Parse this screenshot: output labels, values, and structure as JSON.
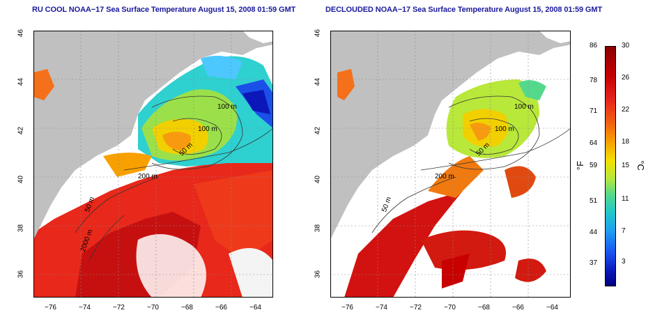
{
  "titles": {
    "left": "RU COOL NOAA−17 Sea Surface Temperature August 15, 2008 01:59 GMT",
    "right": "DECLOUDED NOAA−17 Sea Surface Temperature August 15, 2008 01:59 GMT"
  },
  "axes": {
    "x_ticks": [
      "−76",
      "−74",
      "−72",
      "−70",
      "−68",
      "−66",
      "−64"
    ],
    "y_ticks": [
      "46",
      "44",
      "42",
      "40",
      "38",
      "36"
    ]
  },
  "contours": {
    "left": [
      "100 m",
      "100 m",
      "50 m",
      "200 m",
      "50 m",
      "2000 m"
    ],
    "right": [
      "100 m",
      "100 m",
      "50 m",
      "200 m",
      "50 m"
    ]
  },
  "colorbar": {
    "fahrenheit_ticks": [
      "86",
      "78",
      "71",
      "64",
      "59",
      "51",
      "44",
      "37"
    ],
    "celsius_ticks": [
      "30",
      "26",
      "22",
      "18",
      "15",
      "11",
      "7",
      "3"
    ],
    "unit_f": "°F",
    "unit_c": "°C"
  },
  "colors": {
    "land": "#c0c0c0",
    "warm": "#e02010",
    "hot": "#c80000",
    "title": "#1a1a9c"
  }
}
